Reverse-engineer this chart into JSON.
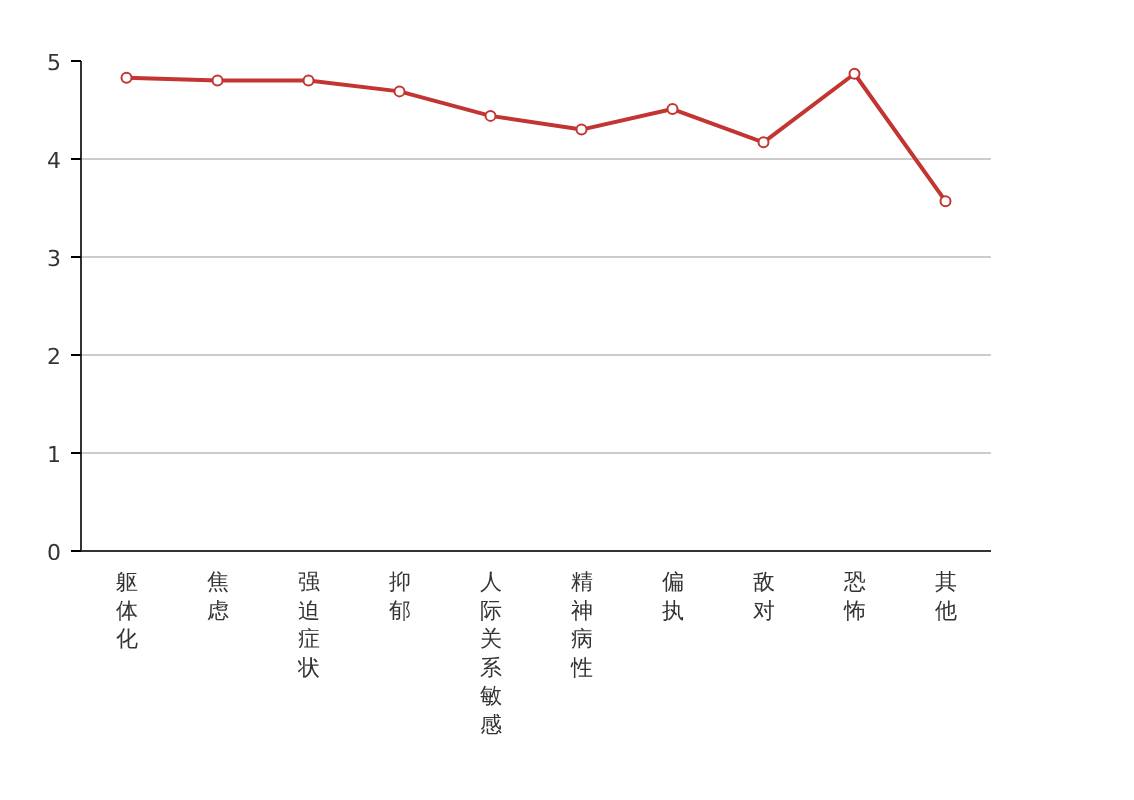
{
  "chart_data": {
    "type": "line",
    "categories": [
      "躯体化",
      "焦虑",
      "强迫症状",
      "抑郁",
      "人际关系敏感",
      "精神病性",
      "偏执",
      "敌对",
      "恐怖",
      "其他"
    ],
    "series": [
      {
        "color": "#c23531",
        "values": [
          4.83,
          4.8,
          4.8,
          4.69,
          4.44,
          4.3,
          4.51,
          4.17,
          4.87,
          3.57
        ]
      }
    ],
    "ylim": [
      0,
      5
    ],
    "yticks": [
      0,
      1,
      2,
      3,
      4,
      5
    ],
    "grid": "y",
    "marker": "circle",
    "line_style": "solid"
  }
}
